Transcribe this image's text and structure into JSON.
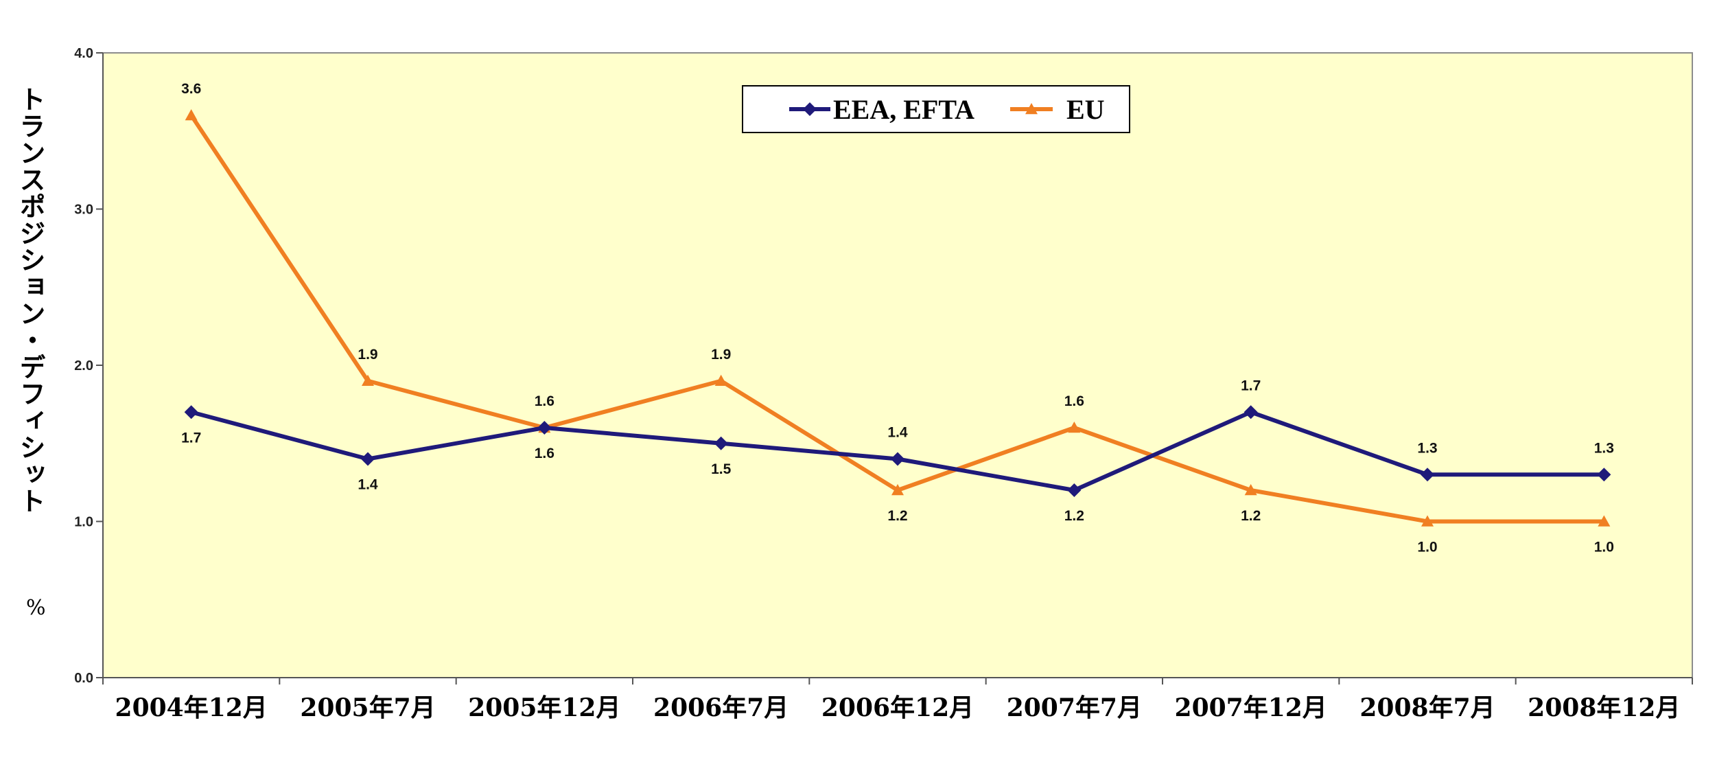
{
  "chart_data": {
    "type": "line",
    "categories": [
      "2004年12月",
      "2005年7月",
      "2005年12月",
      "2006年7月",
      "2006年12月",
      "2007年7月",
      "2007年12月",
      "2008年7月",
      "2008年12月"
    ],
    "series": [
      {
        "name": "EEA, EFTA",
        "color": "#1f1a7a",
        "marker": "diamond",
        "values": [
          1.7,
          1.4,
          1.6,
          1.5,
          1.4,
          1.2,
          1.7,
          1.3,
          1.3
        ]
      },
      {
        "name": "EU",
        "color": "#f07f22",
        "marker": "triangle",
        "values": [
          3.6,
          1.9,
          1.6,
          1.9,
          1.2,
          1.6,
          1.2,
          1.0,
          1.0
        ]
      }
    ],
    "ylabel": "トランスポジション・デフィシット",
    "yunit": "%",
    "ylim": [
      0.0,
      4.0
    ],
    "yticks": [
      "0.0",
      "1.0",
      "2.0",
      "3.0",
      "4.0"
    ],
    "grid": false,
    "legend": "top-center",
    "plot_background": "#ffffcc"
  }
}
